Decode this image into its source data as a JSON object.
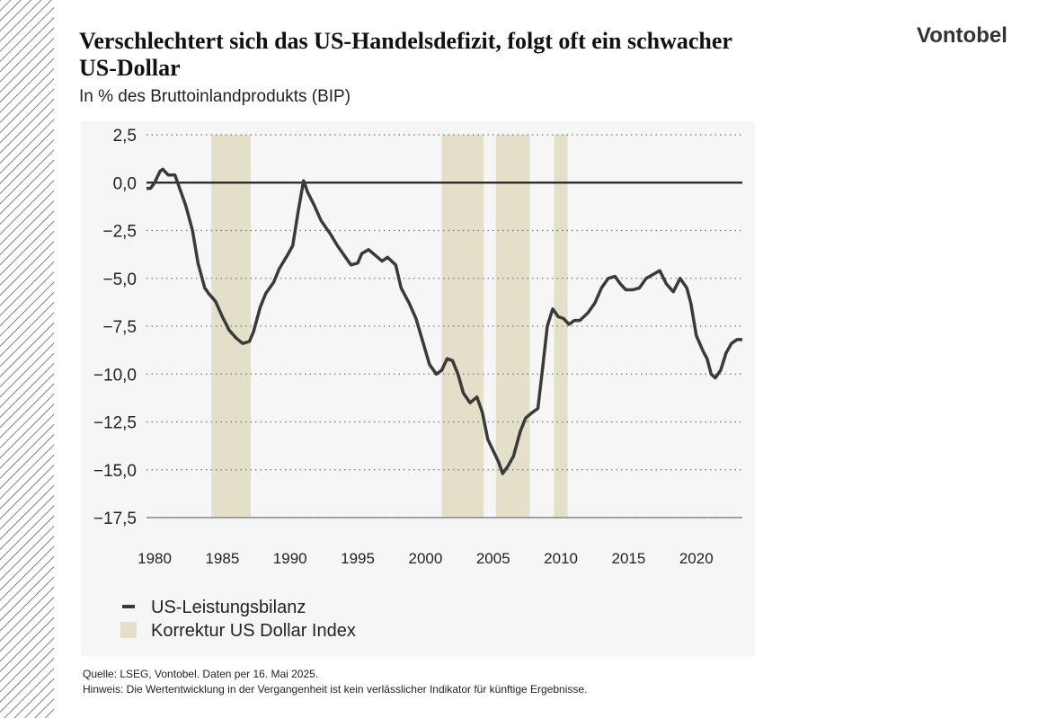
{
  "logo": "Vontobel",
  "source": "Quelle: LSEG, Vontobel. Daten per  16. Mai 2025.",
  "note": "Hinweis: Die Wertentwicklung in der Vergangenheit ist kein verlässlicher Indikator für künftige Ergebnisse.",
  "chart_data": {
    "type": "line",
    "title": [
      "Verschlechtert sich das US-Handelsdefizit, folgt oft ein schwacher",
      "US-Dollar"
    ],
    "subtitle": "In % des Bruttoinlandprodukts (BIP)",
    "xlim": [
      1979.4,
      2023.4
    ],
    "xticks": [
      1980,
      1985,
      1990,
      1995,
      2000,
      2005,
      2010,
      2015,
      2020
    ],
    "ylim": [
      -17.5,
      2.5
    ],
    "yticks": [
      {
        "value": 2.5,
        "label": "2,5"
      },
      {
        "value": 0,
        "label": "0,0"
      },
      {
        "value": -2.5,
        "label": "−2,5"
      },
      {
        "value": -5,
        "label": "−5,0"
      },
      {
        "value": -7.5,
        "label": "−7,5"
      },
      {
        "value": -10,
        "label": "−10,0"
      },
      {
        "value": -12.5,
        "label": "−12,5"
      },
      {
        "value": -15,
        "label": "−15,0"
      },
      {
        "value": -17.5,
        "label": "−17,5"
      }
    ],
    "grid": true,
    "bands": {
      "name": "Korrektur US Dollar Index",
      "color": "#e3dfc8",
      "ranges": [
        [
          1984.2,
          1987.1
        ],
        [
          2001.2,
          2004.3
        ],
        [
          2005.2,
          2007.7
        ],
        [
          2009.5,
          2010.5
        ]
      ]
    },
    "series": [
      {
        "name": "US-Leistungsbilanz",
        "color": "#3a3a3a",
        "x": [
          1979.4,
          1979.7,
          1980,
          1980.4,
          1980.6,
          1981,
          1981.5,
          1981.9,
          1982.3,
          1982.8,
          1983.2,
          1983.7,
          1984,
          1984.5,
          1985,
          1985.5,
          1986,
          1986.5,
          1987,
          1987.3,
          1987.8,
          1988.2,
          1988.8,
          1989.2,
          1989.8,
          1990.2,
          1990.6,
          1991,
          1991.3,
          1991.8,
          1992.3,
          1993,
          1993.5,
          1994,
          1994.5,
          1995,
          1995.3,
          1995.8,
          1996.3,
          1996.8,
          1997.2,
          1997.8,
          1998.2,
          1998.8,
          1999.3,
          1999.8,
          2000.3,
          2000.8,
          2001.2,
          2001.6,
          2002,
          2002.4,
          2002.8,
          2003.3,
          2003.8,
          2004.2,
          2004.6,
          2005,
          2005.4,
          2005.7,
          2006.1,
          2006.5,
          2007,
          2007.4,
          2007.9,
          2008.3,
          2008.6,
          2009,
          2009.4,
          2009.8,
          2010.2,
          2010.6,
          2011,
          2011.4,
          2012,
          2012.5,
          2013,
          2013.5,
          2014,
          2014.4,
          2014.8,
          2015.3,
          2015.8,
          2016.3,
          2016.8,
          2017.3,
          2017.8,
          2018.3,
          2018.8,
          2019.3,
          2019.6,
          2020,
          2020.5,
          2020.8,
          2021.1,
          2021.4,
          2021.8,
          2022.2,
          2022.6,
          2023,
          2023.4
        ],
        "values": [
          -0.3,
          -0.3,
          0.0,
          0.6,
          0.7,
          0.4,
          0.4,
          -0.4,
          -1.2,
          -2.5,
          -4.2,
          -5.5,
          -5.8,
          -6.2,
          -7.0,
          -7.7,
          -8.1,
          -8.4,
          -8.3,
          -7.8,
          -6.5,
          -5.8,
          -5.2,
          -4.5,
          -3.8,
          -3.3,
          -1.5,
          0.1,
          -0.5,
          -1.2,
          -2.0,
          -2.7,
          -3.3,
          -3.8,
          -4.3,
          -4.2,
          -3.7,
          -3.5,
          -3.8,
          -4.1,
          -3.9,
          -4.3,
          -5.5,
          -6.3,
          -7.1,
          -8.3,
          -9.5,
          -10.0,
          -9.8,
          -9.2,
          -9.3,
          -10.0,
          -11.0,
          -11.5,
          -11.2,
          -12.0,
          -13.4,
          -14.0,
          -14.6,
          -15.2,
          -14.8,
          -14.3,
          -13.0,
          -12.3,
          -12.0,
          -11.8,
          -10.0,
          -7.5,
          -6.6,
          -7.0,
          -7.1,
          -7.4,
          -7.2,
          -7.2,
          -6.8,
          -6.3,
          -5.5,
          -5.0,
          -4.9,
          -5.3,
          -5.6,
          -5.6,
          -5.5,
          -5.0,
          -4.8,
          -4.6,
          -5.3,
          -5.7,
          -5.0,
          -5.5,
          -6.3,
          -8.0,
          -8.8,
          -9.2,
          -10.0,
          -10.2,
          -9.8,
          -8.9,
          -8.4,
          -8.2,
          -8.2
        ]
      }
    ]
  }
}
